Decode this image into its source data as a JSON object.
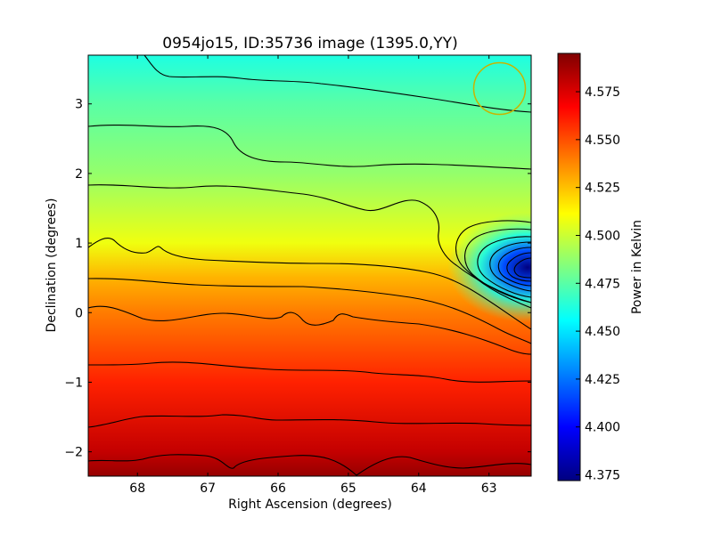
{
  "chart_data": {
    "type": "heatmap",
    "title": "0954jo15, ID:35736 image (1395.0,YY)",
    "xlabel": "Right Ascension (degrees)",
    "ylabel": "Declination (degrees)",
    "colorbar_label": "Power in Kelvin",
    "colormap": "jet",
    "xlim": [
      68.7,
      62.4
    ],
    "ylim": [
      -2.35,
      3.7
    ],
    "clim": [
      4.372,
      4.595
    ],
    "x_ticks": [
      68,
      67,
      66,
      65,
      64,
      63
    ],
    "x_tick_labels": [
      "68",
      "67",
      "66",
      "65",
      "64",
      "63"
    ],
    "y_ticks": [
      -2,
      -1,
      0,
      1,
      2,
      3
    ],
    "y_tick_labels": [
      "−2",
      "−1",
      "0",
      "1",
      "2",
      "3"
    ],
    "colorbar_ticks": [
      4.375,
      4.4,
      4.425,
      4.45,
      4.475,
      4.5,
      4.525,
      4.55,
      4.575
    ],
    "colorbar_tick_labels": [
      "4.375",
      "4.400",
      "4.425",
      "4.450",
      "4.475",
      "4.500",
      "4.525",
      "4.550",
      "4.575"
    ],
    "value_profile_by_dec": {
      "dec": [
        3.7,
        3.0,
        2.0,
        1.0,
        0.5,
        0.0,
        -1.0,
        -2.0,
        -2.35
      ],
      "power": [
        4.462,
        4.475,
        4.488,
        4.508,
        4.528,
        4.54,
        4.56,
        4.58,
        4.59
      ]
    },
    "minimum": {
      "ra": 62.45,
      "dec": 0.65,
      "power": 4.375
    },
    "beam_circle": {
      "ra": 62.85,
      "dec": 3.22,
      "color": "#c8b400"
    },
    "contour_color": "#000000"
  }
}
